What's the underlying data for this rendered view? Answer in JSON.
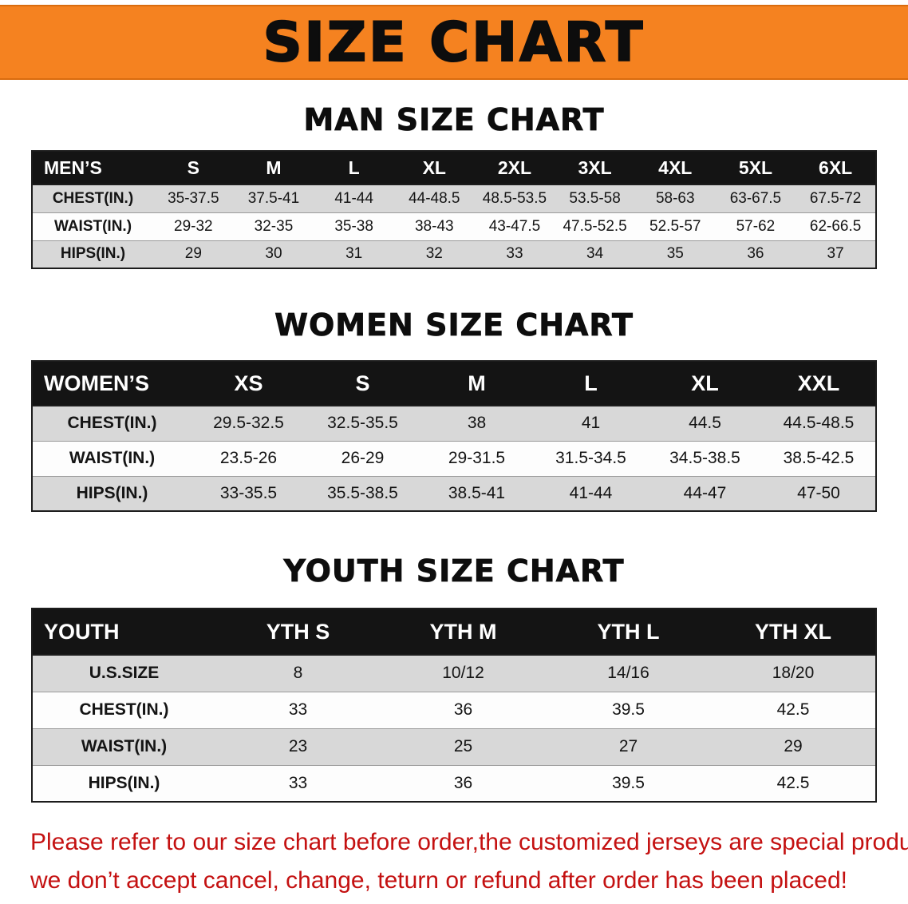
{
  "banner": {
    "title": "SIZE CHART",
    "bg_color": "#F58220"
  },
  "sections": [
    {
      "heading": "MAN SIZE CHART",
      "table": {
        "header": [
          "MEN’S",
          "S",
          "M",
          "L",
          "XL",
          "2XL",
          "3XL",
          "4XL",
          "5XL",
          "6XL"
        ],
        "rows": [
          [
            "CHEST(IN.)",
            "35-37.5",
            "37.5-41",
            "41-44",
            "44-48.5",
            "48.5-53.5",
            "53.5-58",
            "58-63",
            "63-67.5",
            "67.5-72"
          ],
          [
            "WAIST(IN.)",
            "29-32",
            "32-35",
            "35-38",
            "38-43",
            "43-47.5",
            "47.5-52.5",
            "52.5-57",
            "57-62",
            "62-66.5"
          ],
          [
            "HIPS(IN.)",
            "29",
            "30",
            "31",
            "32",
            "33",
            "34",
            "35",
            "36",
            "37"
          ]
        ]
      }
    },
    {
      "heading": "WOMEN SIZE CHART",
      "table": {
        "header": [
          "WOMEN’S",
          "XS",
          "S",
          "M",
          "L",
          "XL",
          "XXL"
        ],
        "rows": [
          [
            "CHEST(IN.)",
            "29.5-32.5",
            "32.5-35.5",
            "38",
            "41",
            "44.5",
            "44.5-48.5"
          ],
          [
            "WAIST(IN.)",
            "23.5-26",
            "26-29",
            "29-31.5",
            "31.5-34.5",
            "34.5-38.5",
            "38.5-42.5"
          ],
          [
            "HIPS(IN.)",
            "33-35.5",
            "35.5-38.5",
            "38.5-41",
            "41-44",
            "44-47",
            "47-50"
          ]
        ]
      }
    },
    {
      "heading": "YOUTH SIZE CHART",
      "table": {
        "header": [
          "YOUTH",
          "YTH S",
          "YTH M",
          "YTH L",
          "YTH XL"
        ],
        "rows": [
          [
            "U.S.SIZE",
            "8",
            "10/12",
            "14/16",
            "18/20"
          ],
          [
            "CHEST(IN.)",
            "33",
            "36",
            "39.5",
            "42.5"
          ],
          [
            "WAIST(IN.)",
            "23",
            "25",
            "27",
            "29"
          ],
          [
            "HIPS(IN.)",
            "33",
            "36",
            "39.5",
            "42.5"
          ]
        ]
      }
    }
  ],
  "footnote": {
    "line1": "Please refer to our size chart before order,the customized jerseys are special products,",
    "line2": "we don’t accept cancel, change, teturn or refund after order has been placed!",
    "color": "#C41111"
  }
}
